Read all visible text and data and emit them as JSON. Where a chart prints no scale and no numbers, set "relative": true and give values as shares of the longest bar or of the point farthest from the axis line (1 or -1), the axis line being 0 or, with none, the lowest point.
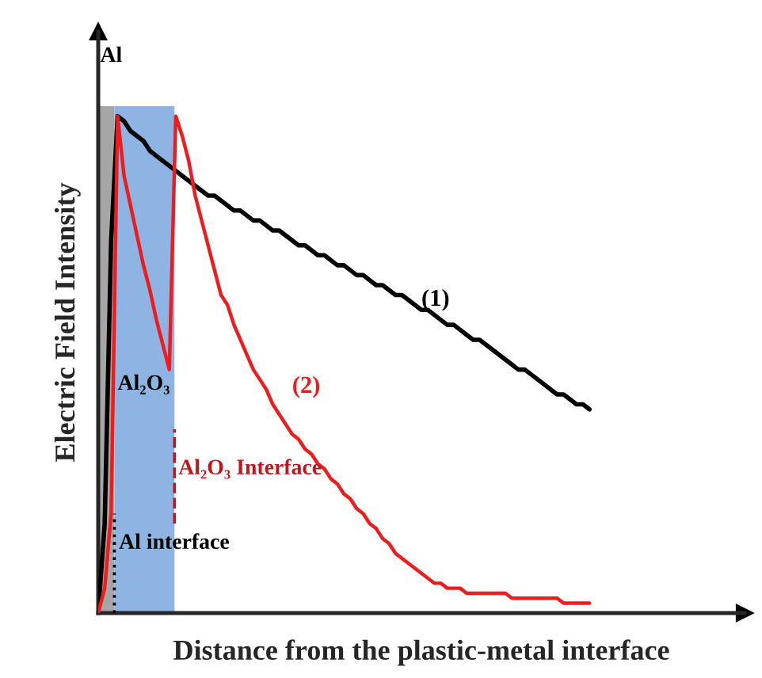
{
  "chart_data": {
    "type": "line",
    "relative": true,
    "xlabel": "Distance from the plastic-metal interface",
    "ylabel": "Electric Field Intensity",
    "categories": [
      null,
      null,
      null,
      null,
      null,
      null,
      null,
      null,
      null,
      null,
      null,
      null,
      null,
      null,
      null,
      null,
      null,
      null,
      null,
      null,
      null,
      null,
      null,
      null,
      null,
      null,
      null,
      null,
      null,
      null,
      null,
      null,
      null,
      null,
      null,
      null,
      null,
      null,
      null,
      null,
      null,
      null,
      null,
      null,
      null,
      null,
      null,
      null,
      null,
      null,
      null,
      null,
      null,
      null,
      null,
      null,
      null,
      null,
      null,
      null,
      null,
      null,
      null,
      null,
      null,
      null,
      null,
      null,
      null,
      null,
      null,
      null,
      null,
      null,
      null,
      null,
      null
    ],
    "series": [
      {
        "name": "(1)",
        "color": "#000000",
        "values": [
          0,
          0.18,
          0.75,
          1.0,
          0.99,
          0.97,
          0.96,
          0.95,
          0.93,
          0.92,
          0.91,
          0.9,
          0.89,
          0.88,
          0.87,
          0.86,
          0.85,
          0.84,
          0.84,
          0.83,
          0.82,
          0.81,
          0.81,
          0.8,
          0.79,
          0.79,
          0.78,
          0.77,
          0.77,
          0.76,
          0.75,
          0.74,
          0.74,
          0.73,
          0.72,
          0.72,
          0.71,
          0.7,
          0.7,
          0.69,
          0.68,
          0.68,
          0.67,
          0.66,
          0.66,
          0.65,
          0.64,
          0.64,
          0.63,
          0.62,
          0.61,
          0.61,
          0.6,
          0.59,
          0.58,
          0.58,
          0.57,
          0.56,
          0.55,
          0.55,
          0.54,
          0.53,
          0.52,
          0.51,
          0.5,
          0.49,
          0.49,
          0.48,
          0.47,
          0.46,
          0.45,
          0.44,
          0.44,
          0.43,
          0.42,
          0.42,
          0.41
        ]
      },
      {
        "name": "(2)",
        "color": "#ee1c1c",
        "values": [
          0,
          0.05,
          0.2,
          1.0,
          0.88,
          0.82,
          0.76,
          0.7,
          0.65,
          0.59,
          0.54,
          0.49,
          1.0,
          0.96,
          0.91,
          0.84,
          0.79,
          0.74,
          0.69,
          0.64,
          0.62,
          0.58,
          0.55,
          0.52,
          0.49,
          0.47,
          0.45,
          0.42,
          0.4,
          0.38,
          0.36,
          0.35,
          0.33,
          0.32,
          0.3,
          0.29,
          0.27,
          0.26,
          0.24,
          0.23,
          0.21,
          0.2,
          0.18,
          0.17,
          0.15,
          0.14,
          0.12,
          0.11,
          0.1,
          0.09,
          0.08,
          0.07,
          0.06,
          0.06,
          0.05,
          0.05,
          0.05,
          0.04,
          0.04,
          0.04,
          0.04,
          0.04,
          0.04,
          0.04,
          0.03,
          0.03,
          0.03,
          0.03,
          0.03,
          0.03,
          0.03,
          0.03,
          0.02,
          0.02,
          0.02,
          0.02,
          0.02
        ]
      }
    ],
    "annotations": [
      "Al",
      "Al₂O₃",
      "Al₂O₃ Interface",
      "Al interface"
    ],
    "line_style": "solid",
    "marker": "none"
  }
}
